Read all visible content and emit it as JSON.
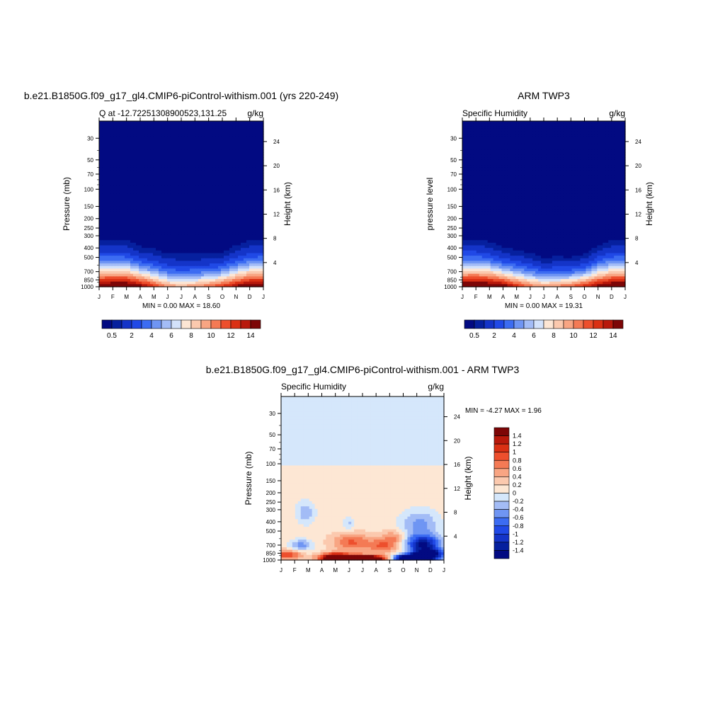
{
  "chart_data": [
    {
      "type": "heatmap",
      "title": "b.e21.B1850G.f09_g17_gl4.CMIP6-piControl-withism.001 (yrs 220-249)",
      "subtitle_left": "Q at -12.72251308900523,131.25",
      "subtitle_right": "g/kg",
      "ylabel": "Pressure (mb)",
      "ylabel_right": "Height (km)",
      "x_tick_labels": [
        "J",
        "F",
        "M",
        "A",
        "M",
        "J",
        "J",
        "A",
        "S",
        "O",
        "N",
        "D",
        "J"
      ],
      "y_ticks": [
        30,
        50,
        70,
        100,
        150,
        200,
        250,
        300,
        400,
        500,
        700,
        850,
        1000
      ],
      "ylim": [
        1000,
        20
      ],
      "y_log": true,
      "height_ticks": [
        4,
        8,
        12,
        16,
        20,
        24
      ],
      "min_max_text": "MIN =   0.00 MAX =  18.60",
      "levels": [
        0.5,
        1,
        2,
        3,
        4,
        5,
        6,
        7,
        8,
        9,
        10,
        11,
        12,
        13,
        14
      ],
      "colorbar_labels": [
        "0.5",
        "2",
        "4",
        "6",
        "8",
        "10",
        "12",
        "14"
      ],
      "surface_q": [
        16.0,
        16.5,
        16.5,
        15.0,
        12.5,
        10.0,
        9.5,
        10.0,
        11.0,
        12.5,
        14.5,
        16.0,
        16.0
      ],
      "moist_top_mb": [
        290,
        290,
        300,
        350,
        370,
        410,
        420,
        420,
        420,
        400,
        340,
        300,
        290
      ],
      "colors": [
        "#020a82",
        "#06209e",
        "#1434c8",
        "#2049e6",
        "#3c6cf2",
        "#6f95f3",
        "#a3bcf6",
        "#d3e2fb",
        "#fde6d4",
        "#fbc9ae",
        "#f8a583",
        "#f47a55",
        "#ed4f2d",
        "#da3014",
        "#b8190c",
        "#7d0607"
      ]
    },
    {
      "type": "heatmap",
      "title": "ARM TWP3",
      "subtitle_left": "Specific Humidity",
      "subtitle_right": "g/kg",
      "ylabel": "pressure level",
      "ylabel_right": "Height (km)",
      "x_tick_labels": [
        "J",
        "F",
        "M",
        "A",
        "M",
        "J",
        "J",
        "A",
        "S",
        "O",
        "N",
        "D",
        "J"
      ],
      "y_ticks": [
        30,
        50,
        70,
        100,
        150,
        200,
        250,
        300,
        400,
        500,
        700,
        850,
        1000
      ],
      "ylim": [
        1000,
        20
      ],
      "y_log": true,
      "height_ticks": [
        4,
        8,
        12,
        16,
        20,
        24
      ],
      "min_max_text": "MIN =   0.00 MAX =  19.31",
      "levels": [
        0.5,
        1,
        2,
        3,
        4,
        5,
        6,
        7,
        8,
        9,
        10,
        11,
        12,
        13,
        14
      ],
      "colorbar_labels": [
        "0.5",
        "2",
        "4",
        "6",
        "8",
        "10",
        "12",
        "14"
      ],
      "surface_q": [
        16.5,
        17.0,
        16.5,
        15.5,
        13.0,
        11.0,
        10.0,
        10.5,
        11.5,
        13.0,
        15.0,
        16.5,
        16.5
      ],
      "moist_top_mb": [
        290,
        290,
        310,
        360,
        380,
        410,
        460,
        450,
        460,
        420,
        340,
        300,
        290
      ],
      "colors": [
        "#020a82",
        "#06209e",
        "#1434c8",
        "#2049e6",
        "#3c6cf2",
        "#6f95f3",
        "#a3bcf6",
        "#d3e2fb",
        "#fde6d4",
        "#fbc9ae",
        "#f8a583",
        "#f47a55",
        "#ed4f2d",
        "#da3014",
        "#b8190c",
        "#7d0607"
      ]
    },
    {
      "type": "heatmap",
      "title": "b.e21.B1850G.f09_g17_gl4.CMIP6-piControl-withism.001 - ARM TWP3",
      "subtitle_left": "Specific Humidity",
      "subtitle_right": "g/kg",
      "ylabel": "Pressure (mb)",
      "ylabel_right": "Height (km)",
      "x_tick_labels": [
        "J",
        "F",
        "M",
        "A",
        "M",
        "J",
        "J",
        "A",
        "S",
        "O",
        "N",
        "D",
        "J"
      ],
      "y_ticks": [
        30,
        50,
        70,
        100,
        150,
        200,
        250,
        300,
        400,
        500,
        700,
        850,
        1000
      ],
      "ylim": [
        1000,
        20
      ],
      "y_log": true,
      "height_ticks": [
        4,
        8,
        12,
        16,
        20,
        24
      ],
      "min_max_text": "MIN =  -4.27 MAX =   1.96",
      "levels": [
        -1.4,
        -1.2,
        -1,
        -0.8,
        -0.6,
        -0.4,
        -0.2,
        0,
        0.2,
        0.4,
        0.6,
        0.8,
        1,
        1.2,
        1.4
      ],
      "colorbar_labels": [
        "1.4",
        "1.2",
        "1",
        "0.8",
        "0.6",
        "0.4",
        "0.2",
        "0",
        "-0.2",
        "-0.4",
        "-0.6",
        "-0.8",
        "-1",
        "-1.2",
        "-1.4"
      ],
      "colors": [
        "#020a82",
        "#06209e",
        "#1434c8",
        "#2049e6",
        "#3c6cf2",
        "#6f95f3",
        "#a3bcf6",
        "#d5e7fb",
        "#fde7d4",
        "#fbc9ae",
        "#f8a583",
        "#f47a55",
        "#ed4f2d",
        "#da3014",
        "#b8190c",
        "#7d0607"
      ],
      "features": [
        {
          "month": 4.8,
          "p": 955,
          "amp": 1.8,
          "sm": 1.2,
          "sp": 0.06
        },
        {
          "month": 6.4,
          "p": 965,
          "amp": 1.9,
          "sm": 1.0,
          "sp": 0.05
        },
        {
          "month": 3.9,
          "p": 935,
          "amp": 1.0,
          "sm": 0.7,
          "sp": 0.08
        },
        {
          "month": 0.5,
          "p": 880,
          "amp": 0.9,
          "sm": 0.7,
          "sp": 0.08
        },
        {
          "month": 5.2,
          "p": 650,
          "amp": 0.7,
          "sm": 1.0,
          "sp": 0.15
        },
        {
          "month": 7.5,
          "p": 720,
          "amp": 0.7,
          "sm": 0.8,
          "sp": 0.12
        },
        {
          "month": 8.3,
          "p": 580,
          "amp": 0.5,
          "sm": 0.6,
          "sp": 0.12
        },
        {
          "month": 9.8,
          "p": 960,
          "amp": -3.6,
          "sm": 0.9,
          "sp": 0.06
        },
        {
          "month": 10.5,
          "p": 690,
          "amp": -1.5,
          "sm": 0.9,
          "sp": 0.15
        },
        {
          "month": 11.0,
          "p": 860,
          "amp": -1.3,
          "sm": 0.9,
          "sp": 0.08
        },
        {
          "month": 10.2,
          "p": 430,
          "amp": -0.6,
          "sm": 1.0,
          "sp": 0.25
        },
        {
          "month": 1.5,
          "p": 700,
          "amp": -0.6,
          "sm": 0.6,
          "sp": 0.1
        },
        {
          "month": 1.8,
          "p": 320,
          "amp": -0.45,
          "sm": 0.5,
          "sp": 0.2
        },
        {
          "month": 5.0,
          "p": 420,
          "amp": -0.35,
          "sm": 0.3,
          "sp": 0.12
        }
      ]
    }
  ]
}
